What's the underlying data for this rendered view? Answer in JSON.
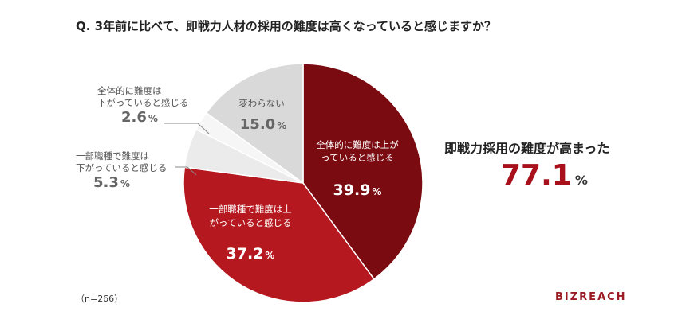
{
  "question": "Q. 3年前に比べて、即戦力人材の採用の難度は高くなっていると感じますか？",
  "headline": "即戦力採用の難度が高まった",
  "headline_value": "77.1",
  "headline_unit": "%",
  "note": "（n=266）",
  "logo": "BIZREACH",
  "chart_data": {
    "type": "pie",
    "total_n": 266,
    "slices": [
      {
        "label": "全体的に難度は上がっていると感じる",
        "value": 39.9,
        "color": "#7a0b10"
      },
      {
        "label": "一部職種で難度は上がっていると感じる",
        "value": 37.2,
        "color": "#b5181f"
      },
      {
        "label": "一部職種で難度は下がっていると感じる",
        "value": 5.3,
        "color": "#ebebeb"
      },
      {
        "label": "全体的に難度は下がっていると感じる",
        "value": 2.6,
        "color": "#f6f6f6"
      },
      {
        "label": "変わらない",
        "value": 15.0,
        "color": "#d9d9d9"
      }
    ]
  },
  "labels": {
    "s0_line1": "全体的に難度は上が",
    "s0_line2": "っていると感じる",
    "s0_pct": "39.9",
    "s1_line1": "一部職種で難度は上",
    "s1_line2": "がっていると感じる",
    "s1_pct": "37.2",
    "s4_line1": "変わらない",
    "s4_pct": "15.0",
    "s3_line1": "全体的に難度は",
    "s3_line2": "下がっていると感じる",
    "s3_pct": "2.6",
    "s2_line1": "一部職種で難度は",
    "s2_line2": "下がっていると感じる",
    "s2_pct": "5.3",
    "unit": "%"
  }
}
